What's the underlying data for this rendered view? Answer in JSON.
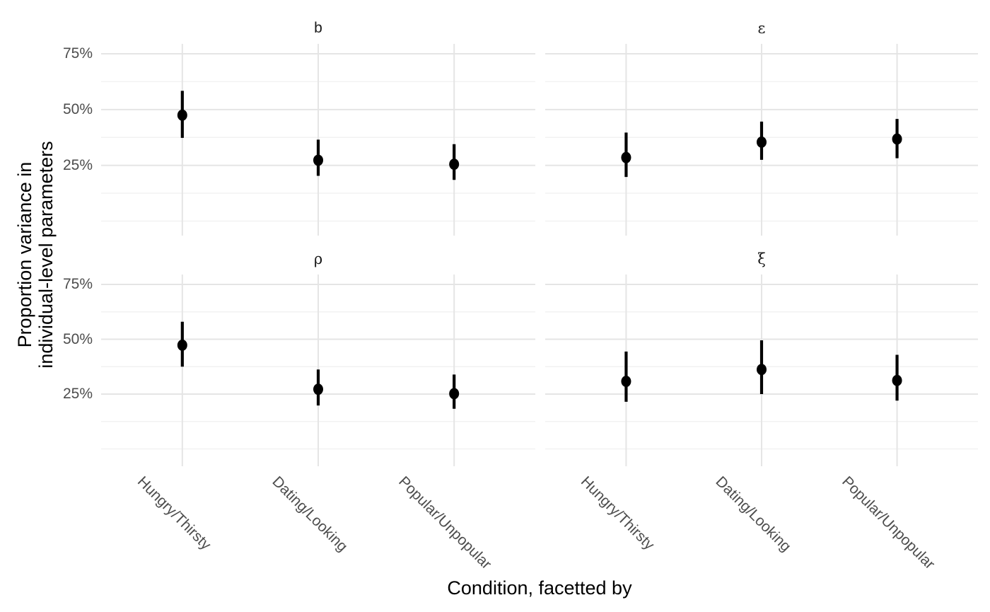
{
  "figure": {
    "y_axis_title_lines": [
      "Proportion variance in",
      "individual-level parameters"
    ],
    "x_axis_title": "Condition, facetted by",
    "y_tick_labels": [
      "75%",
      "50%",
      "25%"
    ],
    "colors": {
      "background": "#ffffff",
      "point_and_range": "#000000",
      "grid_major": "#e5e5e5",
      "grid_minor": "#f2f2f2",
      "tick_text": "#4d4d4d",
      "axis_title_text": "#000000",
      "strip_text": "#1a1a1a"
    }
  },
  "chart_data": {
    "type": "pointrange-faceted",
    "title": "",
    "xlabel": "Condition, facetted by",
    "ylabel": "Proportion variance in individual-level parameters",
    "categories": [
      "Hungry/Thirsty",
      "Dating/Looking",
      "Popular/Unpopular"
    ],
    "y_tick_values_percent": [
      75,
      50,
      25
    ],
    "y_minor_gridlines_percent": [
      62.5,
      37.5,
      12.5,
      0
    ],
    "ylim_percent": [
      -6.4,
      79.5
    ],
    "grid": "major+minor, no axis lines, no panel border",
    "legend": "none",
    "facet_layout": [
      [
        "b",
        "ε"
      ],
      [
        "ρ",
        "ξ"
      ]
    ],
    "facets": [
      {
        "label": "b",
        "row": 0,
        "col": 0,
        "points": [
          {
            "category": "Hungry/Thirsty",
            "value_pct": 47.5,
            "ci_low_pct": 37.3,
            "ci_high_pct": 58.4
          },
          {
            "category": "Dating/Looking",
            "value_pct": 27.3,
            "ci_low_pct": 20.3,
            "ci_high_pct": 36.5
          },
          {
            "category": "Popular/Unpopular",
            "value_pct": 25.5,
            "ci_low_pct": 18.5,
            "ci_high_pct": 34.5
          }
        ]
      },
      {
        "label": "ε",
        "row": 0,
        "col": 1,
        "points": [
          {
            "category": "Hungry/Thirsty",
            "value_pct": 28.5,
            "ci_low_pct": 19.8,
            "ci_high_pct": 39.7
          },
          {
            "category": "Dating/Looking",
            "value_pct": 35.4,
            "ci_low_pct": 27.5,
            "ci_high_pct": 44.6
          },
          {
            "category": "Popular/Unpopular",
            "value_pct": 36.8,
            "ci_low_pct": 28.2,
            "ci_high_pct": 45.8
          }
        ]
      },
      {
        "label": "ρ",
        "row": 1,
        "col": 0,
        "points": [
          {
            "category": "Hungry/Thirsty",
            "value_pct": 47.3,
            "ci_low_pct": 37.5,
            "ci_high_pct": 58.0
          },
          {
            "category": "Dating/Looking",
            "value_pct": 27.2,
            "ci_low_pct": 19.8,
            "ci_high_pct": 36.2
          },
          {
            "category": "Popular/Unpopular",
            "value_pct": 25.2,
            "ci_low_pct": 18.3,
            "ci_high_pct": 33.9
          }
        ]
      },
      {
        "label": "ξ",
        "row": 1,
        "col": 1,
        "points": [
          {
            "category": "Hungry/Thirsty",
            "value_pct": 30.8,
            "ci_low_pct": 21.5,
            "ci_high_pct": 44.4
          },
          {
            "category": "Dating/Looking",
            "value_pct": 36.2,
            "ci_low_pct": 25.0,
            "ci_high_pct": 49.5
          },
          {
            "category": "Popular/Unpopular",
            "value_pct": 31.2,
            "ci_low_pct": 22.0,
            "ci_high_pct": 42.9
          }
        ]
      }
    ]
  }
}
